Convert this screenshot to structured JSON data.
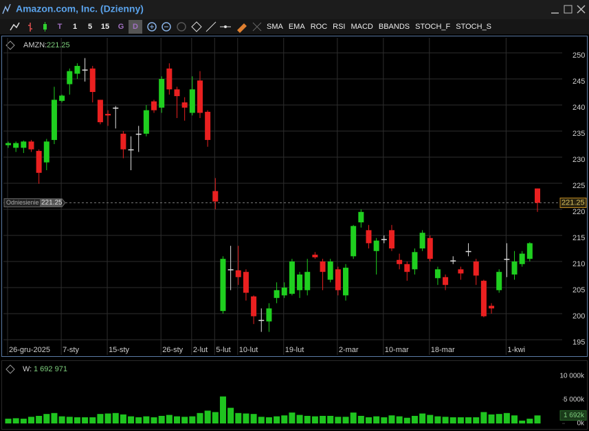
{
  "window": {
    "title": "Amazon.com, Inc. (Dzienny)"
  },
  "toolbar": {
    "items": [
      "T",
      "1",
      "5",
      "15",
      "G",
      "D"
    ],
    "indicators": [
      "SMA",
      "EMA",
      "ROC",
      "RSI",
      "MACD",
      "BBANDS",
      "STOCH_F",
      "STOCH_S"
    ]
  },
  "price_header": {
    "symbol": "AMZN:",
    "value": "221.25"
  },
  "reference": {
    "label": "Odniesienie",
    "value_label": "221.25",
    "value": 221.25
  },
  "last_price_label": "221.25",
  "volume_header": {
    "label": "W:",
    "value": "1 692 971"
  },
  "last_volume_label": "1 692k",
  "chart_data": [
    {
      "type": "candlestick",
      "categories": [
        "26-gru-2025",
        null,
        null,
        null,
        null,
        null,
        null,
        "7-sty",
        null,
        null,
        null,
        null,
        null,
        "15-sty",
        null,
        null,
        null,
        null,
        null,
        null,
        "26-sty",
        null,
        null,
        null,
        "2-lut",
        null,
        null,
        "5-lut",
        null,
        null,
        "10-lut",
        null,
        null,
        null,
        null,
        null,
        "19-lut",
        null,
        null,
        null,
        null,
        null,
        null,
        "2-mar",
        null,
        null,
        null,
        null,
        null,
        "10-mar",
        null,
        null,
        null,
        null,
        null,
        "18-mar",
        null,
        null,
        null,
        null,
        null,
        null,
        null,
        null,
        null,
        "1-kwi",
        null,
        null,
        null,
        null
      ],
      "open": [
        232.3,
        231.8,
        231.8,
        233,
        231.2,
        229,
        233.3,
        240.8,
        244,
        246,
        246.8,
        247,
        241,
        238.3,
        239.5,
        234.5,
        231.5,
        234.5,
        234.5,
        240.7,
        239.5,
        247,
        243,
        240.5,
        238.5,
        244.7,
        238.7,
        223.5,
        200.5,
        208.5,
        208.3,
        208,
        203.3,
        198.8,
        198.5,
        203,
        203.5,
        203.8,
        204.5,
        204.5,
        211.3,
        210,
        206.5,
        208.5,
        203.5,
        211,
        217.5,
        216,
        212,
        214.3,
        216,
        210.3,
        209.5,
        208.5,
        212.5,
        214.5,
        206.8,
        207,
        210.2,
        208.5,
        212,
        210,
        206.3,
        201.5,
        204.5,
        210.5,
        207.5,
        209.5,
        210.5,
        224
      ],
      "high": [
        233,
        233,
        233.2,
        233.3,
        231.5,
        233.5,
        243.5,
        242,
        247,
        248,
        249,
        247.5,
        241,
        239,
        239.8,
        235,
        234,
        236,
        240,
        241,
        245.5,
        248,
        243.5,
        241.5,
        245.5,
        246.5,
        239,
        226,
        211,
        213,
        213,
        208.5,
        203.5,
        201,
        202,
        206,
        206,
        210.5,
        208,
        210.5,
        211.8,
        210.5,
        210.5,
        209,
        209.5,
        217,
        220,
        217,
        214.5,
        215,
        217,
        211.5,
        210,
        212.5,
        216,
        215,
        209,
        207.5,
        211,
        209,
        213.5,
        210.5,
        206.5,
        202,
        208.5,
        213.5,
        212,
        212,
        213.7,
        224
      ],
      "low": [
        231.8,
        231,
        230.8,
        231,
        224.9,
        227.5,
        232.5,
        240.5,
        242,
        245,
        244.5,
        240.5,
        236.3,
        236,
        235.5,
        229.8,
        227.5,
        231,
        234,
        238.5,
        238.5,
        242,
        237.5,
        237,
        238,
        237.5,
        232,
        220,
        200,
        204.5,
        205.5,
        202.5,
        198,
        196.5,
        196.5,
        202,
        203,
        203.5,
        203,
        203.5,
        210.5,
        204.5,
        206,
        203.5,
        202.5,
        210.5,
        216.5,
        212.5,
        207.5,
        213.5,
        212,
        208.5,
        206.3,
        207.5,
        212,
        210,
        205.5,
        204.5,
        209.5,
        206.5,
        211,
        205.5,
        199.3,
        200,
        204,
        207,
        206.5,
        209,
        210,
        219.5
      ],
      "close": [
        232.7,
        232.7,
        233,
        231.5,
        227,
        233,
        241,
        241.8,
        246.5,
        247.5,
        246.8,
        242.5,
        236.7,
        238,
        239.5,
        231.5,
        231.5,
        234.5,
        239,
        239,
        245,
        243,
        241.7,
        239.5,
        243,
        238.5,
        233.3,
        221.5,
        210.5,
        208.5,
        207,
        204,
        199.5,
        198.8,
        201,
        204.5,
        205,
        210,
        207.5,
        208,
        210.8,
        208,
        210,
        204.5,
        208.8,
        216.8,
        219.5,
        213.5,
        214,
        214.3,
        212.5,
        209.5,
        208,
        211.8,
        215.5,
        210.5,
        208.5,
        205.5,
        210.2,
        207.7,
        212,
        207.3,
        199.5,
        201,
        208,
        210.5,
        210,
        211.5,
        213.5,
        221.25
      ],
      "up_color": "#1fcf1f",
      "down_color": "#ea2020",
      "flat_color": "#e0e0e0",
      "ylim": [
        192.1,
        252.9
      ],
      "yticks": [
        195,
        200,
        205,
        210,
        215,
        220,
        225,
        230,
        235,
        240,
        245,
        250
      ],
      "grid": true
    },
    {
      "type": "bar",
      "color": "#1fc41f",
      "values": [
        1000000,
        1100000,
        1000000,
        1400000,
        1600000,
        2000000,
        2200000,
        1500000,
        1400000,
        1300000,
        1300000,
        1300000,
        2000000,
        2100000,
        2200000,
        1900000,
        1500000,
        1300000,
        1500000,
        1300000,
        1600000,
        1800000,
        1500000,
        1400000,
        1500000,
        2200000,
        2700000,
        2400000,
        5700000,
        3300000,
        2200000,
        2100000,
        2000000,
        1400000,
        1300000,
        1500000,
        1700000,
        2300000,
        1800000,
        1600000,
        1500000,
        1600000,
        1600000,
        1400000,
        1400000,
        2300000,
        1600000,
        1300000,
        1500000,
        1300000,
        1700000,
        1500000,
        1200000,
        1600000,
        2100000,
        1800000,
        1500000,
        1400000,
        1300000,
        1300000,
        1300000,
        1300000,
        2400000,
        1900000,
        2000000,
        2200000,
        1700000,
        600000,
        1000000,
        1692971
      ],
      "ylim": [
        -435000,
        13043000
      ],
      "yticks": [
        {
          "value": 10000000,
          "label": "10 000k"
        },
        {
          "value": 5000000,
          "label": "5 000k"
        },
        {
          "value": 0,
          "label": "0k"
        }
      ]
    }
  ]
}
